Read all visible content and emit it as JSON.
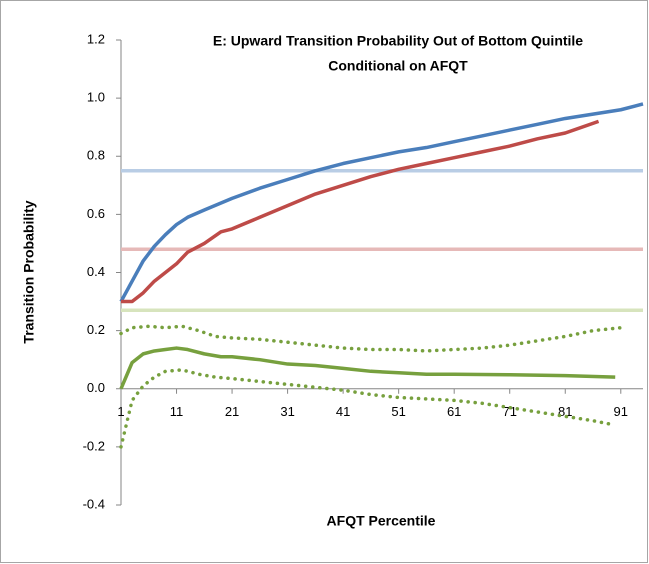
{
  "chart_data": {
    "type": "line",
    "title": [
      "E: Upward Transition Probability Out of Bottom Quintile",
      "Conditional on AFQT"
    ],
    "y_label": "Transition Probability",
    "x_label": "AFQT Percentile",
    "xlim": [
      1,
      95
    ],
    "xticks": [
      1,
      11,
      21,
      31,
      41,
      51,
      61,
      71,
      81,
      91
    ],
    "ylim": [
      -0.4,
      1.2
    ],
    "yticks": [
      -0.4,
      -0.2,
      {
        "value": 0,
        "label": "0.0"
      },
      0.2,
      0.4,
      0.6,
      0.8,
      {
        "value": 1,
        "label": "1.0"
      },
      1.2
    ],
    "series": [
      {
        "color": "#b9cde5",
        "x": [
          1,
          95
        ],
        "values": [
          0.75,
          0.75
        ]
      },
      {
        "color": "#e6b9b8",
        "x": [
          1,
          95
        ],
        "values": [
          0.48,
          0.48
        ]
      },
      {
        "color": "#d7e4bd",
        "x": [
          1,
          95
        ],
        "values": [
          0.27,
          0.27
        ]
      },
      {
        "color": "#4a7ebb",
        "x": [
          1,
          3,
          5,
          7,
          9,
          11,
          13,
          16,
          21,
          26,
          31,
          36,
          41,
          46,
          51,
          56,
          61,
          66,
          71,
          76,
          81,
          86,
          91,
          95
        ],
        "values": [
          0.3,
          0.37,
          0.44,
          0.49,
          0.53,
          0.565,
          0.59,
          0.615,
          0.655,
          0.69,
          0.72,
          0.75,
          0.775,
          0.795,
          0.815,
          0.83,
          0.85,
          0.87,
          0.89,
          0.91,
          0.93,
          0.945,
          0.96,
          0.98
        ]
      },
      {
        "color": "#be4b48",
        "x": [
          1,
          3,
          5,
          7,
          9,
          11,
          13,
          16,
          19,
          21,
          26,
          31,
          36,
          41,
          46,
          51,
          56,
          61,
          66,
          71,
          76,
          81,
          87
        ],
        "values": [
          0.3,
          0.3,
          0.33,
          0.37,
          0.4,
          0.43,
          0.47,
          0.5,
          0.54,
          0.55,
          0.59,
          0.63,
          0.67,
          0.7,
          0.73,
          0.755,
          0.775,
          0.795,
          0.815,
          0.835,
          0.86,
          0.88,
          0.92
        ]
      },
      {
        "color": "#77a03e",
        "x": [
          1,
          3,
          5,
          7,
          9,
          11,
          13,
          16,
          19,
          21,
          26,
          31,
          36,
          41,
          46,
          51,
          56,
          61,
          71,
          81,
          90
        ],
        "values": [
          0.0,
          0.09,
          0.12,
          0.13,
          0.135,
          0.14,
          0.135,
          0.12,
          0.11,
          0.11,
          0.1,
          0.085,
          0.08,
          0.07,
          0.06,
          0.055,
          0.05,
          0.05,
          0.048,
          0.045,
          0.04
        ]
      },
      {
        "color": "#77a03e",
        "style": "dotted",
        "x": [
          1,
          3,
          6,
          9,
          12,
          15,
          18,
          21,
          26,
          31,
          36,
          41,
          46,
          51,
          56,
          61,
          66,
          71,
          76,
          81,
          86,
          91
        ],
        "values": [
          0.19,
          0.21,
          0.215,
          0.21,
          0.215,
          0.2,
          0.18,
          0.175,
          0.17,
          0.16,
          0.15,
          0.14,
          0.135,
          0.135,
          0.13,
          0.135,
          0.14,
          0.15,
          0.165,
          0.18,
          0.2,
          0.21
        ]
      },
      {
        "color": "#77a03e",
        "style": "dotted",
        "x": [
          1,
          2,
          3,
          5,
          7,
          9,
          12,
          15,
          18,
          21,
          26,
          31,
          36,
          41,
          46,
          51,
          56,
          61,
          66,
          71,
          76,
          81,
          86,
          90
        ],
        "values": [
          -0.2,
          -0.12,
          -0.04,
          0.01,
          0.04,
          0.06,
          0.065,
          0.05,
          0.04,
          0.035,
          0.025,
          0.015,
          0.005,
          -0.005,
          -0.02,
          -0.03,
          -0.035,
          -0.04,
          -0.05,
          -0.065,
          -0.08,
          -0.095,
          -0.11,
          -0.125
        ]
      }
    ]
  }
}
